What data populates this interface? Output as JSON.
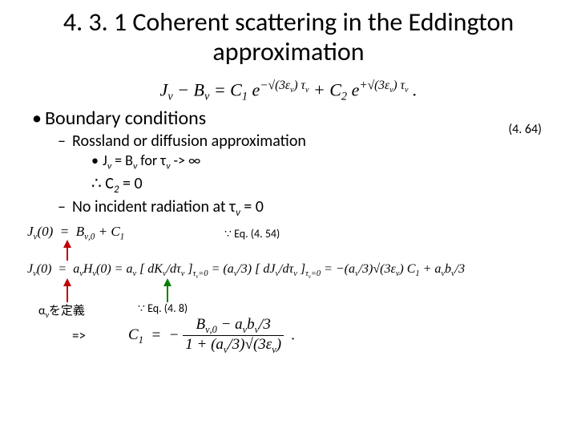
{
  "title": "4. 3. 1 Coherent scattering in the Eddington approximation",
  "eqMain": "J<sub>ν</sub> − B<sub>ν</sub> = C<sub>1</sub> e<sup>−√(3ε<sub>ν</sub>) τ<sub>ν</sub></sup> + C<sub>2</sub> e<sup>+√(3ε<sub>ν</sub>) τ<sub>ν</sub></sup> .",
  "eqNum": "(4. 64)",
  "b1": "Boundary conditions",
  "b2a": "Rossland or diffusion approximation",
  "b3a": "J<sub>ν</sub> = B<sub>ν</sub> for τ<sub>ν</sub> -> ∞",
  "therefore": "∴ C<sub>2</sub> = 0",
  "b2b": "No incident radiation at τ<sub>ν</sub> = 0",
  "eqRow1": "<span style=\"font-style:italic\">J<sub>ν</sub></span>(0)&nbsp;&nbsp;=&nbsp;&nbsp;<span style=\"font-style:italic\">B<sub>ν,0</sub> + C<sub>1</sub></span>",
  "annot454": "∵ Eq. (4. 54)",
  "eqRow2": "J<sub>ν</sub>(0)&nbsp;&nbsp;=&nbsp;&nbsp;a<sub>ν</sub>H<sub>ν</sub>(0) = a<sub>ν</sub> [ dK<sub>ν</sub>/dτ<sub>ν</sub> ]<sub>τ<sub>ν</sub>=0</sub> = (a<sub>ν</sub>/3) [ dJ<sub>ν</sub>/dτ<sub>ν</sub> ]<sub>τ<sub>ν</sub>=0</sub> = −(a<sub>ν</sub>/3)√(3ε<sub>ν</sub>) C<sub>1</sub> + a<sub>ν</sub>b<sub>ν</sub>/3",
  "annot48": "∵ Eq. (4. 8)",
  "alphaDef": "α<sub>ν</sub>を定義",
  "implies": "=>",
  "eqC1_lhs": "C<sub>1</sub>",
  "eqC1_num": "B<sub>ν,0</sub> − a<sub>ν</sub>b<sub>ν</sub>/3",
  "eqC1_den": "1 + (a<sub>ν</sub>/3)√(3ε<sub>ν</sub>)",
  "colors": {
    "red": "#c00000",
    "green": "#008000",
    "text": "#000000",
    "bg": "#ffffff"
  },
  "fonts": {
    "body": "Calibri",
    "math": "Cambria Math"
  }
}
